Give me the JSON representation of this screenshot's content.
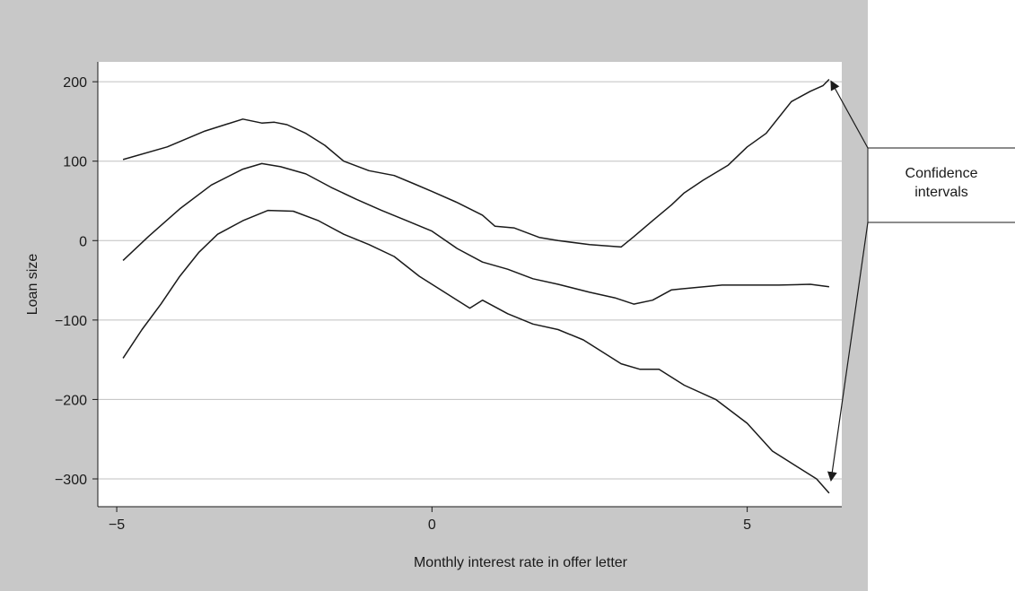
{
  "chart_data": {
    "type": "line",
    "title": "",
    "xlabel": "Monthly interest rate in offer letter",
    "ylabel": "Loan size",
    "xlim": [
      -5.3,
      6.5
    ],
    "ylim": [
      -335,
      225
    ],
    "xticks": [
      -5,
      0,
      5
    ],
    "xtick_labels": [
      "−5",
      "0",
      "5"
    ],
    "yticks": [
      200,
      100,
      0,
      -100,
      -200,
      -300
    ],
    "ytick_labels": [
      "200",
      "100",
      "0",
      "−100",
      "−200",
      "−300"
    ],
    "grid": "horizontal",
    "colors": {
      "line": "#1a1a1a",
      "outer_background": "#c8c8c8",
      "plot_background": "#ffffff",
      "grid": "#c0c0c0"
    },
    "series": [
      {
        "x": [
          -4.9,
          -4.2,
          -3.6,
          -3.0,
          -2.7,
          -2.5,
          -2.3,
          -2.0,
          -1.7,
          -1.4,
          -1.0,
          -0.6,
          -0.3,
          0.0,
          0.4,
          0.8,
          1.0,
          1.3,
          1.7,
          2.0,
          2.5,
          3.0,
          3.2,
          3.5,
          3.8,
          4.0,
          4.3,
          4.7,
          5.0,
          5.3,
          5.7,
          6.0,
          6.2,
          6.3
        ],
        "y": [
          102,
          118,
          138,
          153,
          148,
          149,
          146,
          135,
          120,
          100,
          88,
          82,
          72,
          62,
          48,
          32,
          18,
          16,
          4,
          0,
          -5,
          -8,
          5,
          25,
          45,
          60,
          76,
          95,
          118,
          135,
          175,
          188,
          195,
          203
        ]
      },
      {
        "x": [
          -4.9,
          -4.5,
          -4.0,
          -3.5,
          -3.0,
          -2.7,
          -2.4,
          -2.0,
          -1.6,
          -1.2,
          -0.8,
          -0.4,
          0.0,
          0.4,
          0.8,
          1.2,
          1.6,
          2.0,
          2.5,
          2.9,
          3.2,
          3.5,
          3.8,
          4.2,
          4.6,
          5.0,
          5.5,
          6.0,
          6.3
        ],
        "y": [
          -25,
          5,
          40,
          70,
          90,
          97,
          93,
          84,
          67,
          52,
          38,
          25,
          12,
          -10,
          -27,
          -36,
          -48,
          -55,
          -65,
          -72,
          -80,
          -75,
          -62,
          -59,
          -56,
          -56,
          -56,
          -55,
          -58
        ]
      },
      {
        "x": [
          -4.9,
          -4.6,
          -4.3,
          -4.0,
          -3.7,
          -3.4,
          -3.0,
          -2.6,
          -2.2,
          -1.8,
          -1.4,
          -1.0,
          -0.6,
          -0.2,
          0.2,
          0.6,
          0.8,
          1.2,
          1.6,
          2.0,
          2.4,
          2.8,
          3.0,
          3.3,
          3.6,
          4.0,
          4.5,
          5.0,
          5.4,
          5.8,
          6.1,
          6.3
        ],
        "y": [
          -148,
          -112,
          -80,
          -45,
          -15,
          8,
          25,
          38,
          37,
          25,
          8,
          -5,
          -20,
          -45,
          -65,
          -85,
          -75,
          -92,
          -105,
          -112,
          -125,
          -145,
          -155,
          -162,
          -162,
          -182,
          -200,
          -230,
          -265,
          -285,
          -300,
          -318
        ]
      }
    ],
    "annotations": [
      {
        "text": "Confidence intervals",
        "lines": [
          "Confidence",
          "intervals"
        ]
      }
    ]
  }
}
